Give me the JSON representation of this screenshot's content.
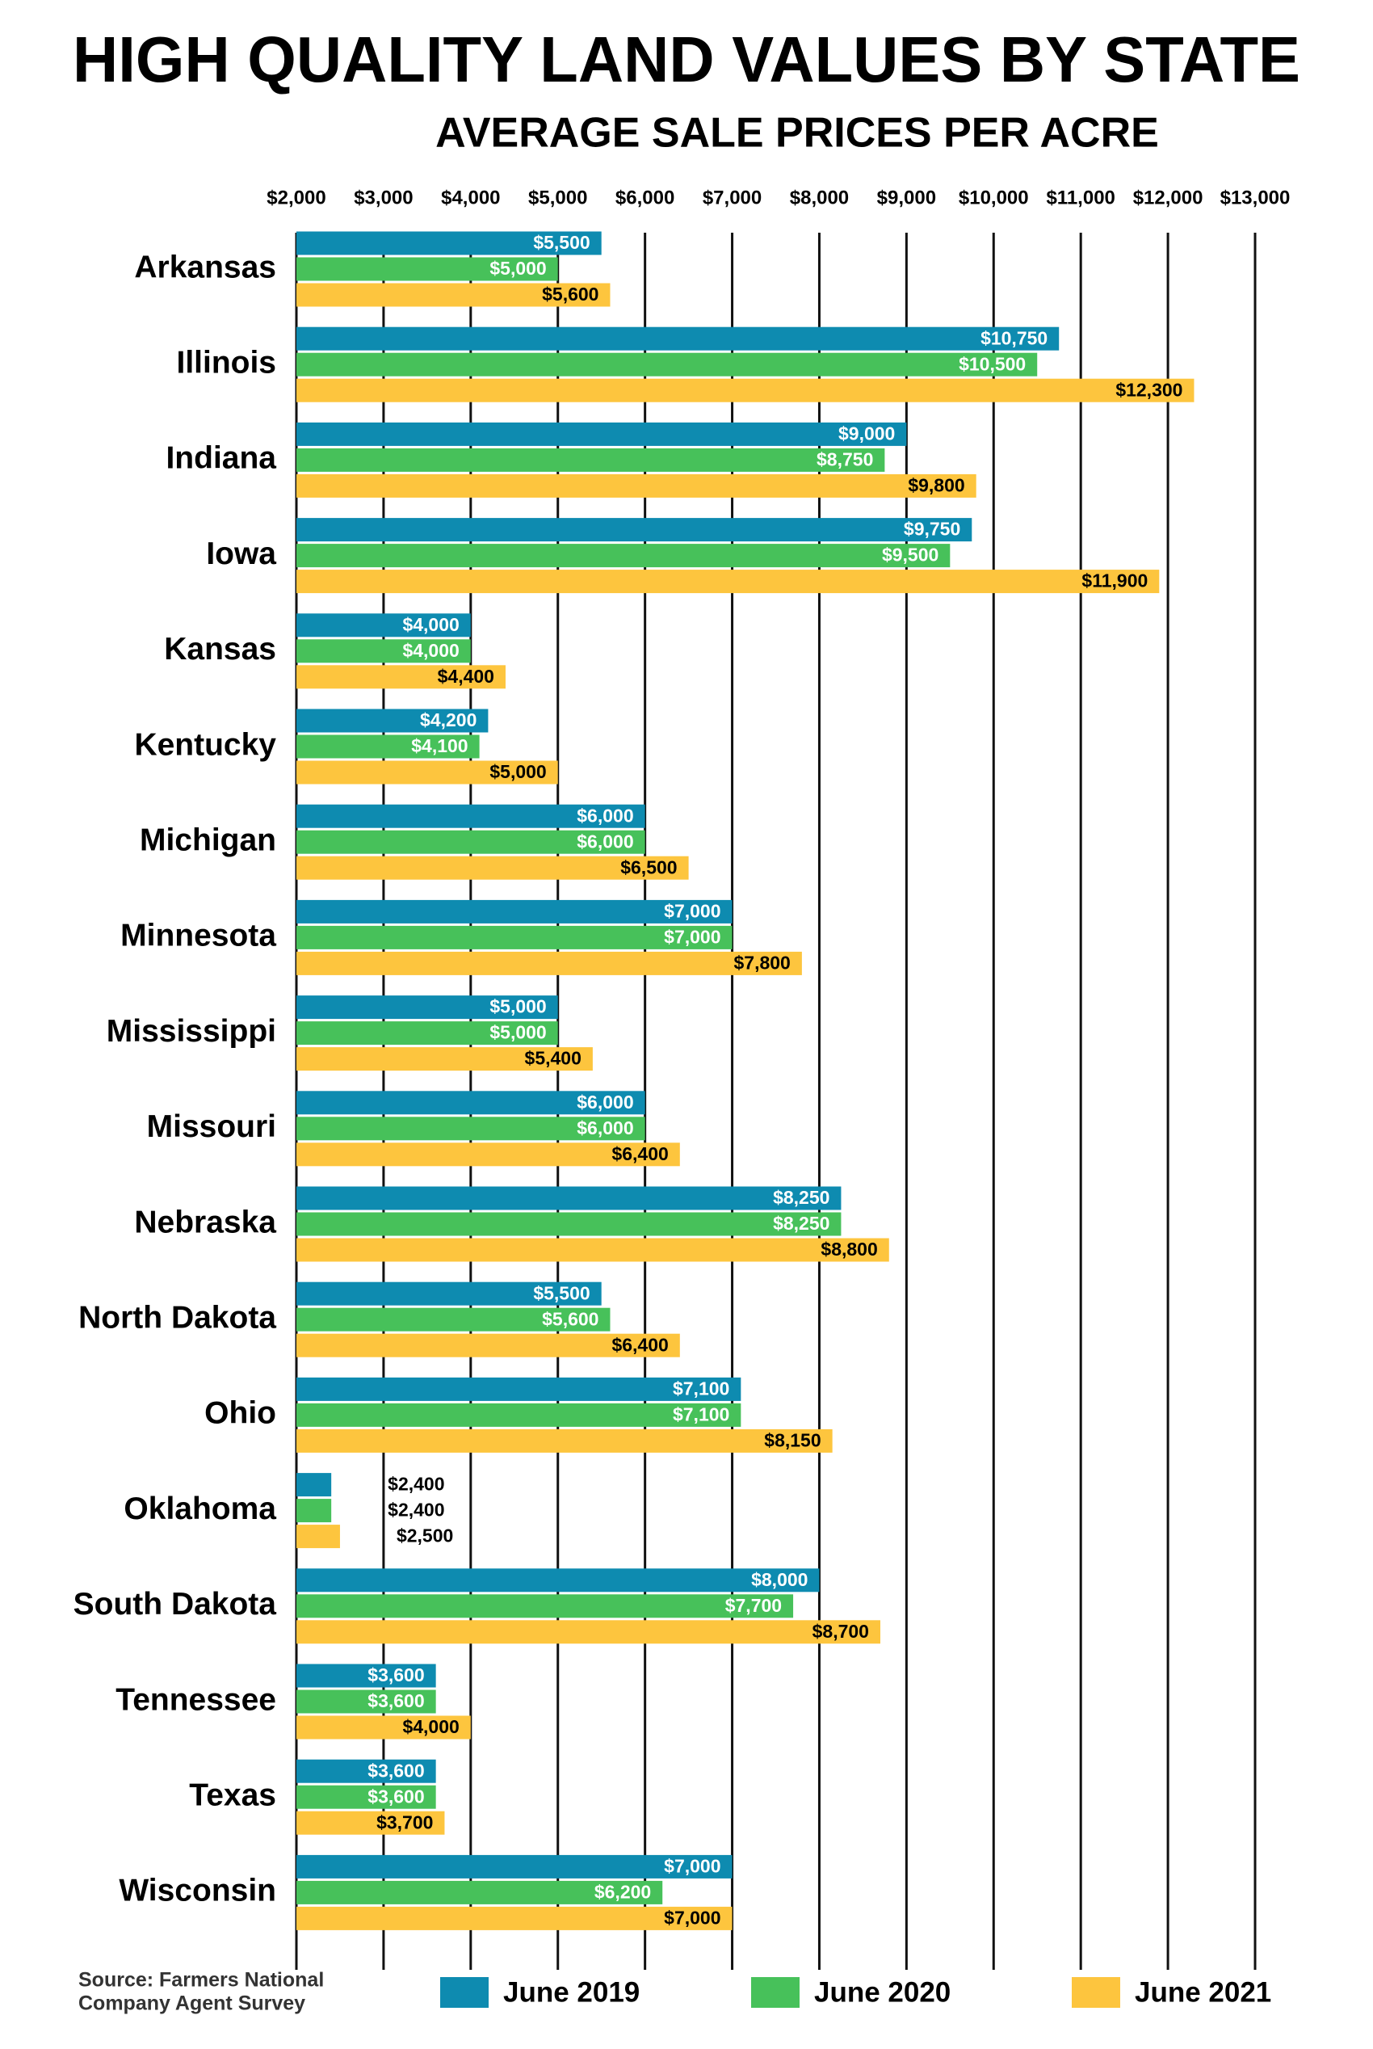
{
  "chart_data": {
    "type": "bar",
    "orientation": "horizontal",
    "title": "HIGH QUALITY LAND VALUES BY STATE",
    "subtitle": "AVERAGE SALE PRICES PER ACRE",
    "source": [
      "Source: Farmers National",
      "Company Agent Survey"
    ],
    "categories": [
      "Arkansas",
      "Illinois",
      "Indiana",
      "Iowa",
      "Kansas",
      "Kentucky",
      "Michigan",
      "Minnesota",
      "Mississippi",
      "Missouri",
      "Nebraska",
      "North Dakota",
      "Ohio",
      "Oklahoma",
      "South Dakota",
      "Tennessee",
      "Texas",
      "Wisconsin"
    ],
    "series": [
      {
        "name": "June 2019",
        "color": "#0e8bb0",
        "label_color": "#ffffff",
        "values": [
          5500,
          10750,
          9000,
          9750,
          4000,
          4200,
          6000,
          7000,
          5000,
          6000,
          8250,
          5500,
          7100,
          2400,
          8000,
          3600,
          3600,
          7000
        ],
        "value_labels": [
          "$5,500",
          "$10,750",
          "$9,000",
          "$9,750",
          "$4,000",
          "$4,200",
          "$6,000",
          "$7,000",
          "$5,000",
          "$6,000",
          "$8,250",
          "$5,500",
          "$7,100",
          "$2,400",
          "$8,000",
          "$3,600",
          "$3,600",
          "$7,000"
        ]
      },
      {
        "name": "June 2020",
        "color": "#47c15a",
        "label_color": "#ffffff",
        "values": [
          5000,
          10500,
          8750,
          9500,
          4000,
          4100,
          6000,
          7000,
          5000,
          6000,
          8250,
          5600,
          7100,
          2400,
          7700,
          3600,
          3600,
          6200
        ],
        "value_labels": [
          "$5,000",
          "$10,500",
          "$8,750",
          "$9,500",
          "$4,000",
          "$4,100",
          "$6,000",
          "$7,000",
          "$5,000",
          "$6,000",
          "$8,250",
          "$5,600",
          "$7,100",
          "$2,400",
          "$7,700",
          "$3,600",
          "$3,600",
          "$6,200"
        ]
      },
      {
        "name": "June 2021",
        "color": "#fdc53e",
        "label_color": "#000000",
        "values": [
          5600,
          12300,
          9800,
          11900,
          4400,
          5000,
          6500,
          7800,
          5400,
          6400,
          8800,
          6400,
          8150,
          2500,
          8700,
          4000,
          3700,
          7000
        ],
        "value_labels": [
          "$5,600",
          "$12,300",
          "$9,800",
          "$11,900",
          "$4,400",
          "$5,000",
          "$6,500",
          "$7,800",
          "$5,400",
          "$6,400",
          "$8,800",
          "$6,400",
          "$8,150",
          "$2,500",
          "$8,700",
          "$4,000",
          "$3,700",
          "$7,000"
        ]
      }
    ],
    "xlim": [
      2000,
      13000
    ],
    "xticks": [
      {
        "value": 2000,
        "label": "$2,000"
      },
      {
        "value": 3000,
        "label": "$3,000"
      },
      {
        "value": 4000,
        "label": "$4,000"
      },
      {
        "value": 5000,
        "label": "$5,000"
      },
      {
        "value": 6000,
        "label": "$6,000"
      },
      {
        "value": 7000,
        "label": "$7,000"
      },
      {
        "value": 8000,
        "label": "$8,000"
      },
      {
        "value": 9000,
        "label": "$9,000"
      },
      {
        "value": 10000,
        "label": "$10,000"
      },
      {
        "value": 11000,
        "label": "$11,000"
      },
      {
        "value": 12000,
        "label": "$12,000"
      },
      {
        "value": 13000,
        "label": "$13,000"
      }
    ],
    "grid": true
  }
}
